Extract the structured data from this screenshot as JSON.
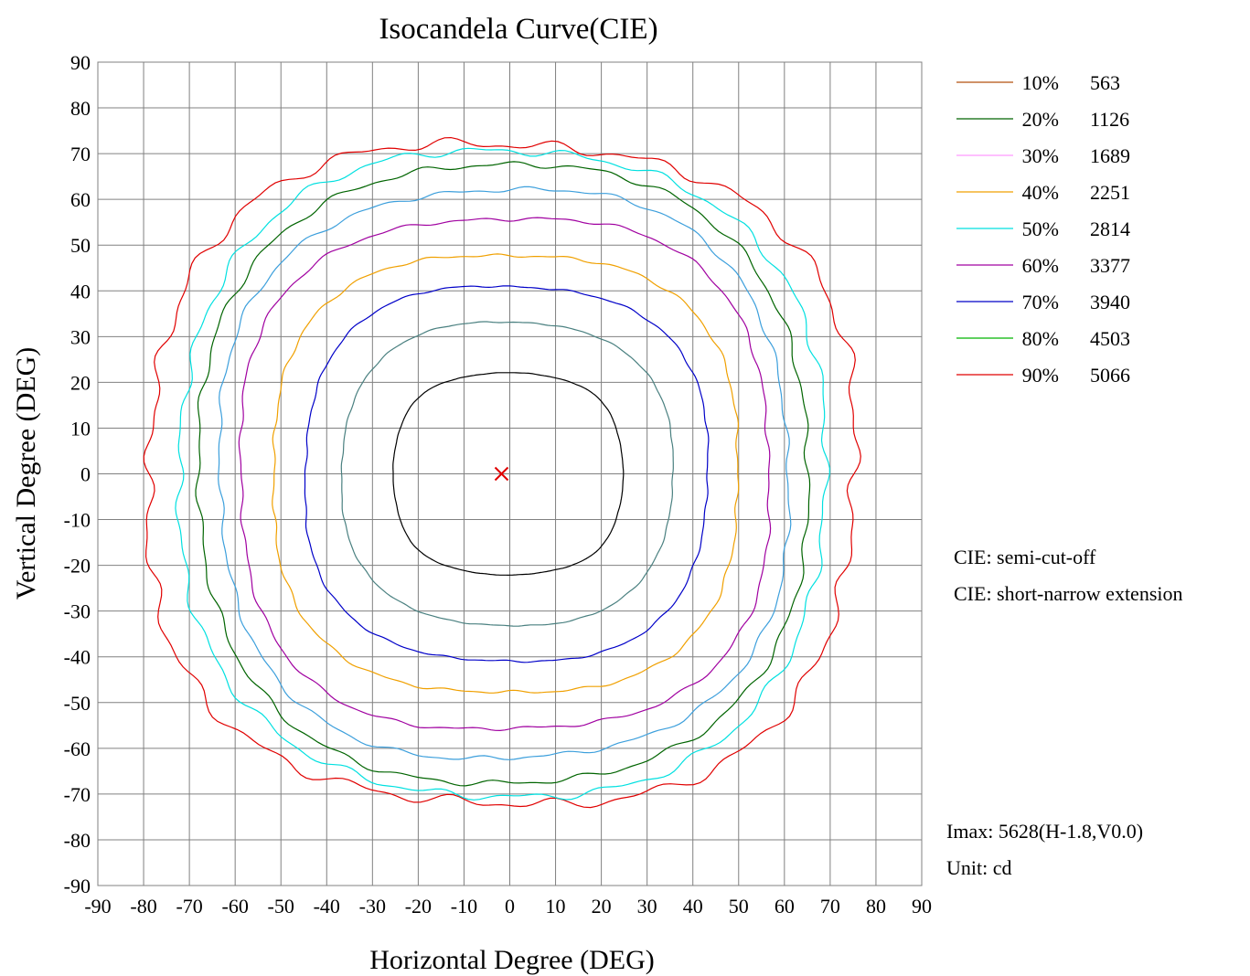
{
  "chart_data": {
    "type": "contour",
    "title": "Isocandela Curve(CIE)",
    "xlabel": "Horizontal  Degree (DEG)",
    "ylabel": "Vertical  Degree (DEG)",
    "xlim": [
      -90,
      90
    ],
    "ylim": [
      -90,
      90
    ],
    "x_ticks": [
      -90,
      -80,
      -70,
      -60,
      -50,
      -40,
      -30,
      -20,
      -10,
      0,
      10,
      20,
      30,
      40,
      50,
      60,
      70,
      80,
      90
    ],
    "y_ticks": [
      90,
      80,
      70,
      60,
      50,
      40,
      30,
      20,
      10,
      0,
      -10,
      -20,
      -30,
      -40,
      -50,
      -60,
      -70,
      -80,
      -90
    ],
    "grid": true,
    "legend_position": "right",
    "series": [
      {
        "name": "10%",
        "value": "563",
        "color": "#b4500f"
      },
      {
        "name": "20%",
        "value": "1126",
        "color": "#006400"
      },
      {
        "name": "30%",
        "value": "1689",
        "color": "#ff99ff"
      },
      {
        "name": "40%",
        "value": "2251",
        "color": "#f0a000"
      },
      {
        "name": "50%",
        "value": "2814",
        "color": "#00e0e0"
      },
      {
        "name": "60%",
        "value": "3377",
        "color": "#a000a0"
      },
      {
        "name": "70%",
        "value": "3940",
        "color": "#0000c8"
      },
      {
        "name": "80%",
        "value": "4503",
        "color": "#00b400"
      },
      {
        "name": "90%",
        "value": "5066",
        "color": "#e00000"
      }
    ],
    "contours": [
      {
        "color": "#e00000",
        "halfwidth": 77,
        "halfheight": 72,
        "amp": 1.2,
        "wob": 0.8,
        "lobes": 4
      },
      {
        "color": "#00e0e0",
        "halfwidth": 70,
        "halfheight": 70,
        "amp": 0.9,
        "wob": 0.8,
        "lobes": 4
      },
      {
        "color": "#006400",
        "halfwidth": 66,
        "halfheight": 67,
        "amp": 0.7,
        "wob": 0.8,
        "lobes": 4
      },
      {
        "color": "#3c9fdc",
        "halfwidth": 62,
        "halfheight": 62,
        "amp": 0.6,
        "wob": 0.7,
        "lobes": 4
      },
      {
        "color": "#a000a0",
        "halfwidth": 58,
        "halfheight": 56,
        "amp": 0.5,
        "wob": 0.7,
        "lobes": 4
      },
      {
        "color": "#f0a000",
        "halfwidth": 51,
        "halfheight": 48,
        "amp": 0.5,
        "wob": 0.6,
        "lobes": 4
      },
      {
        "color": "#0000c8",
        "halfwidth": 44,
        "halfheight": 41,
        "amp": 0.35,
        "wob": 0.6,
        "lobes": 4
      },
      {
        "color": "#4a8080",
        "halfwidth": 36,
        "halfheight": 33,
        "amp": 0.25,
        "wob": 0.6,
        "lobes": 4
      },
      {
        "color": "#000000",
        "halfwidth": 25,
        "halfheight": 22,
        "amp": 0.12,
        "wob": 0.5,
        "lobes": 8
      }
    ],
    "peak": {
      "x": -1.8,
      "y": 0.0,
      "color": "#e00000"
    },
    "notes": {
      "cie_1": "CIE:  semi-cut-off",
      "cie_2": "CIE:  short-narrow extension",
      "imax": "Imax:  5628(H-1.8,V0.0)",
      "unit": "Unit:  cd"
    }
  }
}
